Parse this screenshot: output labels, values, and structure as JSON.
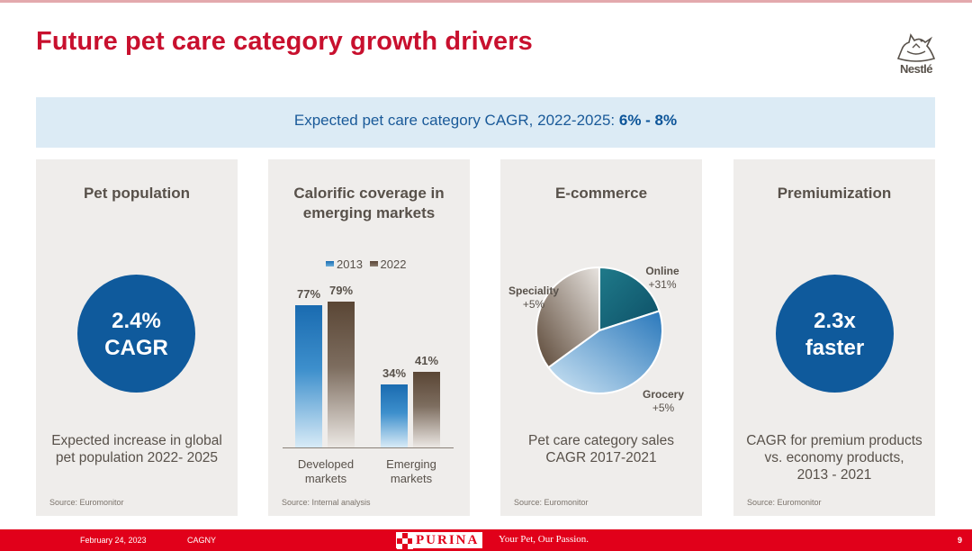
{
  "header": {
    "title": "Future pet care category growth drivers",
    "logo_text": "Nestlé"
  },
  "banner": {
    "text": "Expected pet care category CAGR, 2022-2025: ",
    "highlight": "6% - 8%"
  },
  "panels": {
    "pet_population": {
      "title": "Pet population",
      "circle_line1": "2.4%",
      "circle_line2": "CAGR",
      "desc_line1": "Expected increase in global",
      "desc_line2": "pet population 2022- 2025",
      "source": "Source: Euromonitor"
    },
    "calorific": {
      "title_line1": "Calorific coverage in",
      "title_line2": "emerging markets",
      "source": "Source: Internal analysis"
    },
    "ecommerce": {
      "title": "E-commerce",
      "desc_line1": "Pet care category sales",
      "desc_line2": "CAGR 2017-2021",
      "source": "Source: Euromonitor"
    },
    "premiumization": {
      "title": "Premiumization",
      "circle_line1": "2.3x",
      "circle_line2": "faster",
      "desc_line1": "CAGR for premium products",
      "desc_line2": "vs. economy products,",
      "desc_line3": "2013 - 2021",
      "source": "Source: Euromonitor"
    }
  },
  "chart_data": [
    {
      "type": "bar",
      "title": "Calorific coverage in emerging markets",
      "categories": [
        "Developed markets",
        "Emerging markets"
      ],
      "category_lines": [
        [
          "Developed",
          "markets"
        ],
        [
          "Emerging",
          "markets"
        ]
      ],
      "series": [
        {
          "name": "2013",
          "values": [
            77,
            34
          ],
          "labels": [
            "77%",
            "34%"
          ]
        },
        {
          "name": "2022",
          "values": [
            79,
            41
          ],
          "labels": [
            "79%",
            "41%"
          ]
        }
      ],
      "ylim": [
        0,
        100
      ],
      "legend": "top"
    },
    {
      "type": "pie",
      "title": "Pet care category sales CAGR 2017-2021",
      "slices": [
        {
          "name": "Online",
          "growth": "+31%",
          "share": 0.2
        },
        {
          "name": "Grocery",
          "growth": "+5%",
          "share": 0.45
        },
        {
          "name": "Speciality",
          "growth": "+5%",
          "share": 0.35
        }
      ]
    }
  ],
  "footer": {
    "date": "February 24, 2023",
    "event": "CAGNY",
    "brand": "PURINA",
    "slogan": "Your Pet, Our Passion.",
    "page": "9"
  },
  "colors": {
    "accent_red": "#c8102e",
    "nestle_blue": "#0f5a9c",
    "footer_red": "#e1001a"
  }
}
